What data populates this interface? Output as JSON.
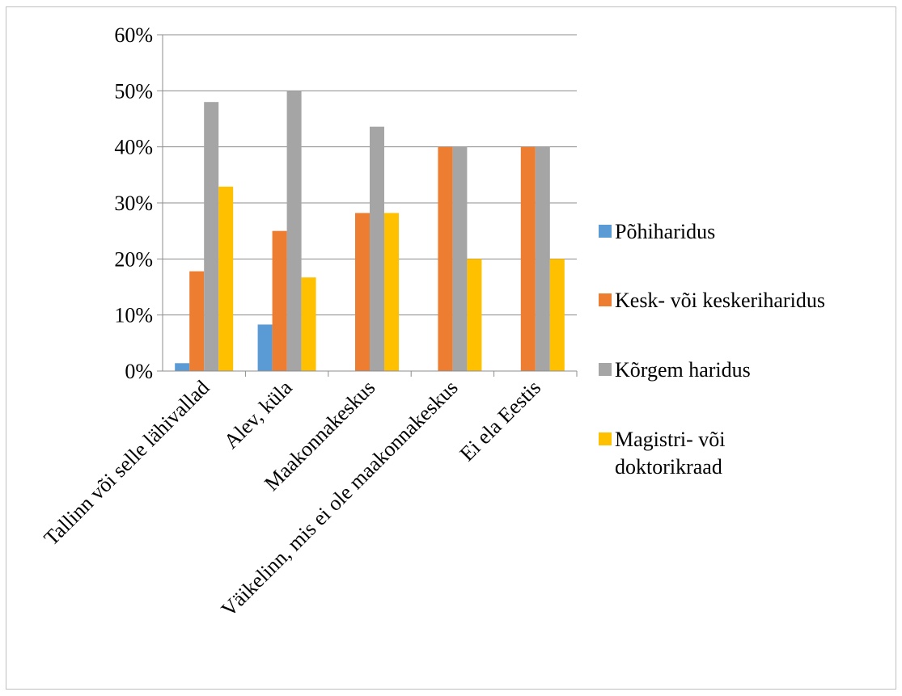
{
  "chart_data": {
    "type": "bar",
    "title": "",
    "xlabel": "",
    "ylabel": "",
    "ylim": [
      0,
      60
    ],
    "y_ticks": [
      "0%",
      "10%",
      "20%",
      "30%",
      "40%",
      "50%",
      "60%"
    ],
    "y_tick_values": [
      0,
      10,
      20,
      30,
      40,
      50,
      60
    ],
    "grid": true,
    "legend_position": "right",
    "categories": [
      "Tallinn või selle lähivallad",
      "Alev, küla",
      "Maakonnakeskus",
      "Väikelinn, mis ei ole maakonnakeskus",
      "Ei ela Eestis"
    ],
    "series": [
      {
        "name": "Põhiharidus",
        "color": "#5b9bd5",
        "values": [
          1.4,
          8.3,
          0,
          0,
          0
        ]
      },
      {
        "name": "Kesk- või keskeriharidus",
        "color": "#ed7d31",
        "values": [
          17.8,
          25,
          28.2,
          40,
          40
        ]
      },
      {
        "name": "Kõrgem haridus",
        "color": "#a5a5a5",
        "values": [
          48,
          50,
          43.6,
          40,
          40
        ]
      },
      {
        "name": "Magistri- või doktorikraad",
        "color": "#ffc000",
        "values": [
          32.9,
          16.7,
          28.2,
          20,
          20
        ]
      }
    ],
    "legend_lines": [
      [
        "Põhiharidus"
      ],
      [
        "Kesk- või keskeriharidus"
      ],
      [
        "Kõrgem haridus"
      ],
      [
        "Magistri- või",
        "doktorikraad"
      ]
    ]
  }
}
